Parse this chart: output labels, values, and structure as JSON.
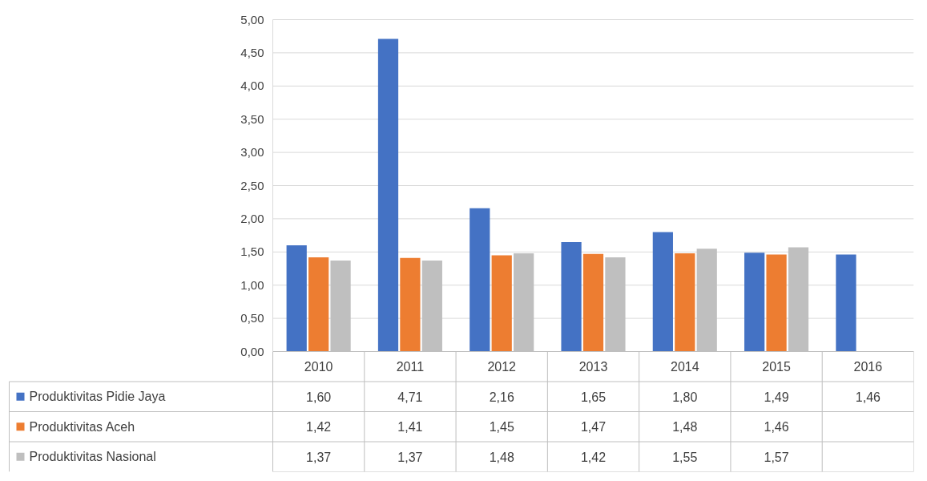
{
  "chart_data": {
    "type": "bar",
    "categories": [
      "2010",
      "2011",
      "2012",
      "2013",
      "2014",
      "2015",
      "2016"
    ],
    "series": [
      {
        "name": "Produktivitas Pidie Jaya",
        "color": "#4472c4",
        "values": [
          1.6,
          4.71,
          2.16,
          1.65,
          1.8,
          1.49,
          1.46
        ],
        "value_labels": [
          "1,60",
          "4,71",
          "2,16",
          "1,65",
          "1,80",
          "1,49",
          "1,46"
        ]
      },
      {
        "name": "Produktivitas Aceh",
        "color": "#ed7d31",
        "values": [
          1.42,
          1.41,
          1.45,
          1.47,
          1.48,
          1.46,
          null
        ],
        "value_labels": [
          "1,42",
          "1,41",
          "1,45",
          "1,47",
          "1,48",
          "1,46",
          null
        ]
      },
      {
        "name": "Produktivitas Nasional",
        "color": "#bfbfbf",
        "values": [
          1.37,
          1.37,
          1.48,
          1.42,
          1.55,
          1.57,
          null
        ],
        "value_labels": [
          "1,37",
          "1,37",
          "1,48",
          "1,42",
          "1,55",
          "1,57",
          null
        ]
      }
    ],
    "ylim": [
      0,
      5
    ],
    "yticks": [
      {
        "value": 0,
        "label": "0,00"
      },
      {
        "value": 0.5,
        "label": "0,50"
      },
      {
        "value": 1,
        "label": "1,00"
      },
      {
        "value": 1.5,
        "label": "1,50"
      },
      {
        "value": 2,
        "label": "2,00"
      },
      {
        "value": 2.5,
        "label": "2,50"
      },
      {
        "value": 3,
        "label": "3,00"
      },
      {
        "value": 3.5,
        "label": "3,50"
      },
      {
        "value": 4,
        "label": "4,00"
      },
      {
        "value": 4.5,
        "label": "4,50"
      },
      {
        "value": 5,
        "label": "5,00"
      }
    ],
    "grid": "y",
    "legend": "bottom"
  }
}
